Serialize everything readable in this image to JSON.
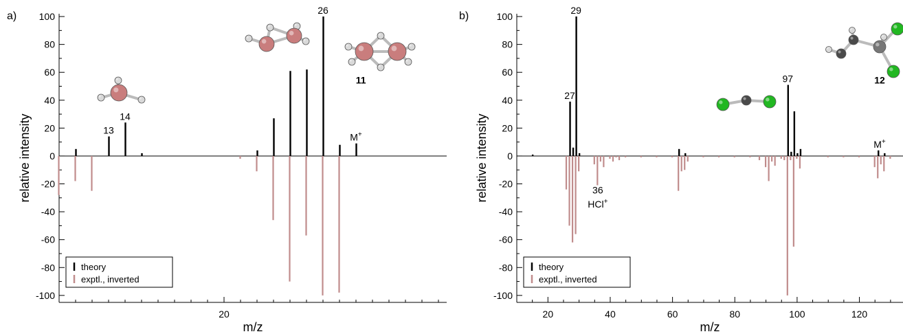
{
  "colors": {
    "theory": "#000000",
    "experiment": "#c08c8c",
    "axis": "#000000",
    "boron": "#c97d7d",
    "hydrogen": "#d9d9d9",
    "carbon": "#4a4a4a",
    "chlorine": "#22b722"
  },
  "chart_data": [
    {
      "panel_label": "a)",
      "type": "bar",
      "xlabel": "m/z",
      "ylabel": "relative intensity",
      "xlim": [
        10,
        33.5
      ],
      "ylim": [
        -105,
        102
      ],
      "xticks": [
        20
      ],
      "xminor": [
        11,
        12,
        13,
        14,
        15,
        16,
        17,
        18,
        19,
        21,
        22,
        23,
        24,
        25,
        26,
        27,
        28,
        29,
        30,
        31,
        32,
        33
      ],
      "yticks": [
        100,
        80,
        60,
        40,
        20,
        0,
        -20,
        -40,
        -60,
        -80,
        -100
      ],
      "grid": false,
      "legend_position": "bottom-left",
      "series": [
        {
          "name": "theory",
          "points": [
            [
              11,
              5
            ],
            [
              12,
              0
            ],
            [
              13,
              14
            ],
            [
              14,
              24
            ],
            [
              15,
              2
            ],
            [
              22,
              4
            ],
            [
              23,
              27
            ],
            [
              24,
              61
            ],
            [
              25,
              62
            ],
            [
              26,
              100
            ],
            [
              27,
              8
            ],
            [
              28,
              9
            ]
          ]
        },
        {
          "name": "exptl., inverted",
          "points": [
            [
              11,
              -18
            ],
            [
              10.9,
              0
            ],
            [
              10,
              -28
            ],
            [
              12,
              -25
            ],
            [
              21,
              -2
            ],
            [
              22,
              -11
            ],
            [
              23,
              -46
            ],
            [
              24,
              -90
            ],
            [
              25,
              -57
            ],
            [
              26,
              -100
            ],
            [
              27,
              -98
            ]
          ]
        }
      ],
      "annotations": [
        {
          "text": "13",
          "x": 13,
          "y": 14
        },
        {
          "text": "14",
          "x": 14,
          "y": 24
        },
        {
          "text": "26",
          "x": 26,
          "y": 100
        },
        {
          "text": "M",
          "sup": "+",
          "x": 28,
          "y": 9
        },
        {
          "text": "11",
          "bold": true,
          "x": 28.3,
          "y": 52
        }
      ]
    },
    {
      "panel_label": "b)",
      "type": "bar",
      "xlabel": "m/z",
      "ylabel": "relative intensity",
      "xlim": [
        10,
        134
      ],
      "ylim": [
        -105,
        102
      ],
      "xticks": [
        20,
        40,
        60,
        80,
        100,
        120
      ],
      "xminor": [
        10,
        15,
        25,
        30,
        35,
        45,
        50,
        55,
        65,
        70,
        75,
        85,
        90,
        95,
        105,
        110,
        115,
        125,
        130
      ],
      "yticks": [
        100,
        80,
        60,
        40,
        20,
        0,
        -20,
        -40,
        -60,
        -80,
        -100
      ],
      "grid": false,
      "legend_position": "bottom-left",
      "series": [
        {
          "name": "theory",
          "points": [
            [
              15,
              1
            ],
            [
              27,
              39
            ],
            [
              28,
              6
            ],
            [
              29,
              100
            ],
            [
              30,
              2
            ],
            [
              62,
              5
            ],
            [
              64,
              2
            ],
            [
              97,
              51
            ],
            [
              98,
              3
            ],
            [
              99,
              32
            ],
            [
              100,
              2
            ],
            [
              101,
              5
            ],
            [
              126,
              4
            ],
            [
              128,
              2
            ]
          ]
        },
        {
          "name": "exptl., inverted",
          "points": [
            [
              26,
              -24
            ],
            [
              27,
              -50
            ],
            [
              28,
              -62
            ],
            [
              29,
              -56
            ],
            [
              30,
              -11
            ],
            [
              35,
              -6
            ],
            [
              36,
              -21
            ],
            [
              37,
              -4
            ],
            [
              38,
              -8
            ],
            [
              40,
              -2
            ],
            [
              41,
              -4
            ],
            [
              42,
              -1
            ],
            [
              43,
              -3
            ],
            [
              45,
              -1
            ],
            [
              50,
              -1
            ],
            [
              55,
              -1
            ],
            [
              60,
              -1
            ],
            [
              62,
              -25
            ],
            [
              63,
              -11
            ],
            [
              64,
              -10
            ],
            [
              65,
              -4
            ],
            [
              70,
              -1
            ],
            [
              75,
              -1
            ],
            [
              80,
              -1
            ],
            [
              85,
              -1
            ],
            [
              88,
              -3
            ],
            [
              90,
              -8
            ],
            [
              91,
              -18
            ],
            [
              92,
              -4
            ],
            [
              93,
              -7
            ],
            [
              95,
              -2
            ],
            [
              96,
              -3
            ],
            [
              97,
              -100
            ],
            [
              98,
              -3
            ],
            [
              99,
              -65
            ],
            [
              100,
              -2
            ],
            [
              101,
              -9
            ],
            [
              110,
              -1
            ],
            [
              115,
              -1
            ],
            [
              120,
              -1
            ],
            [
              125,
              -8
            ],
            [
              126,
              -16
            ],
            [
              127,
              -6
            ],
            [
              128,
              -11
            ],
            [
              130,
              -2
            ]
          ]
        }
      ],
      "annotations": [
        {
          "text": "27",
          "x": 27,
          "y": 39
        },
        {
          "text": "29",
          "x": 29,
          "y": 100
        },
        {
          "text": "97",
          "x": 97,
          "y": 51
        },
        {
          "text": "M",
          "sup": "+",
          "x": 126.5,
          "y": 4
        },
        {
          "text": "36",
          "x": 36,
          "y": -27
        },
        {
          "text": "HCl",
          "sup": "+",
          "x": 36,
          "y": -37
        },
        {
          "text": "12",
          "bold": true,
          "x": 126.5,
          "y": 52
        }
      ]
    }
  ]
}
